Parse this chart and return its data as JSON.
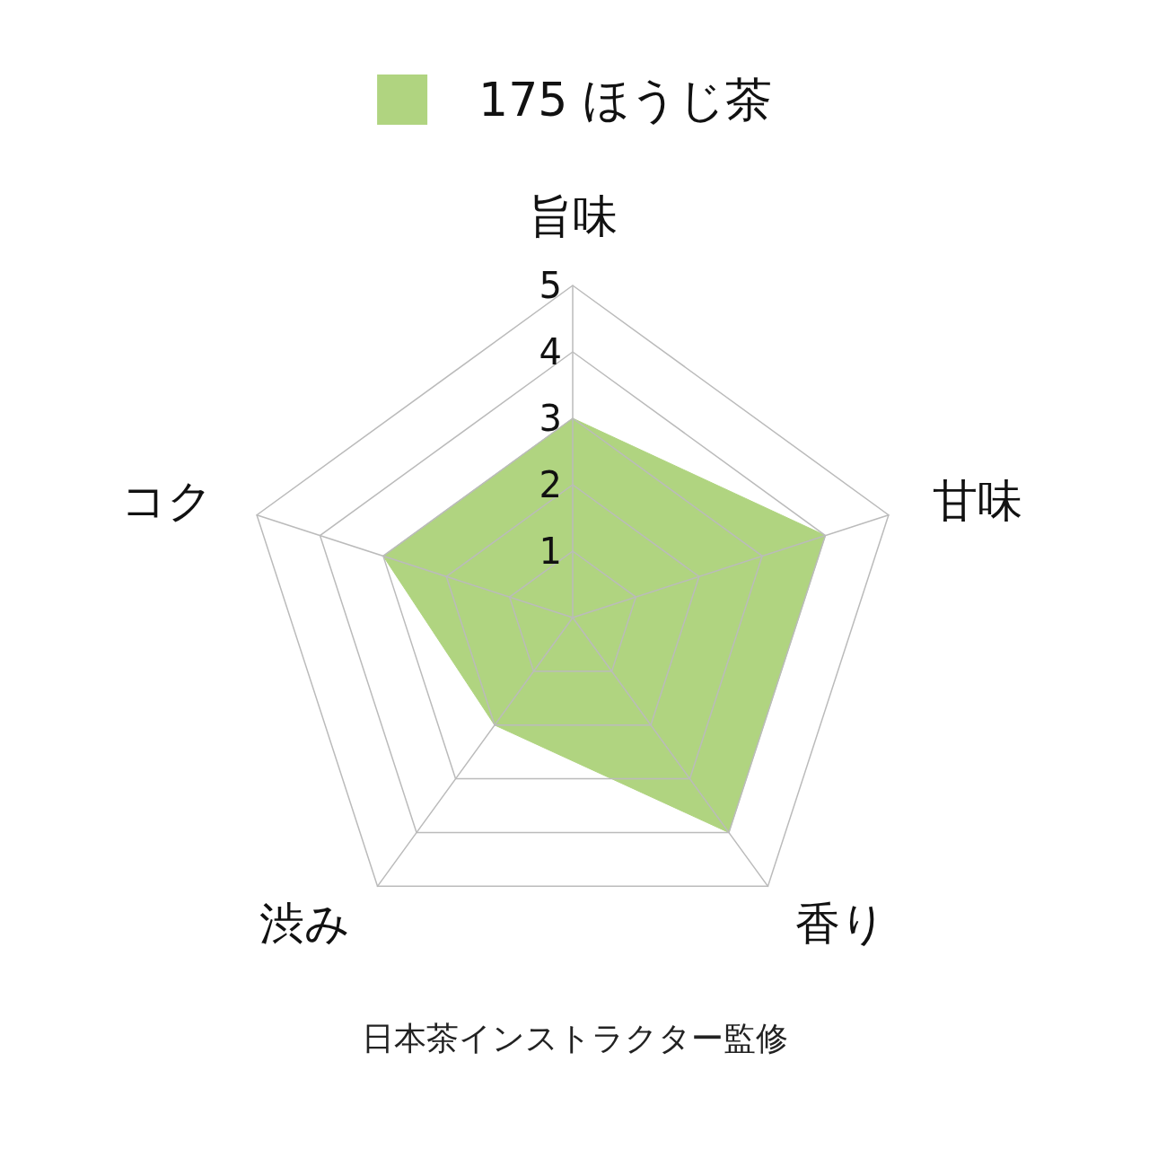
{
  "chart_data": {
    "type": "radar",
    "categories": [
      "旨味",
      "甘味",
      "香り",
      "渋み",
      "コク"
    ],
    "series": [
      {
        "name": "175 ほうじ茶",
        "color": "#b0d480",
        "values": [
          3,
          4,
          4,
          2,
          3
        ]
      }
    ],
    "ylim": [
      0,
      5
    ],
    "yticks": [
      1,
      2,
      3,
      4,
      5
    ],
    "grid": true,
    "legend": "top",
    "marker": "none",
    "annotations": [
      "日本茶インストラクター監修"
    ]
  }
}
